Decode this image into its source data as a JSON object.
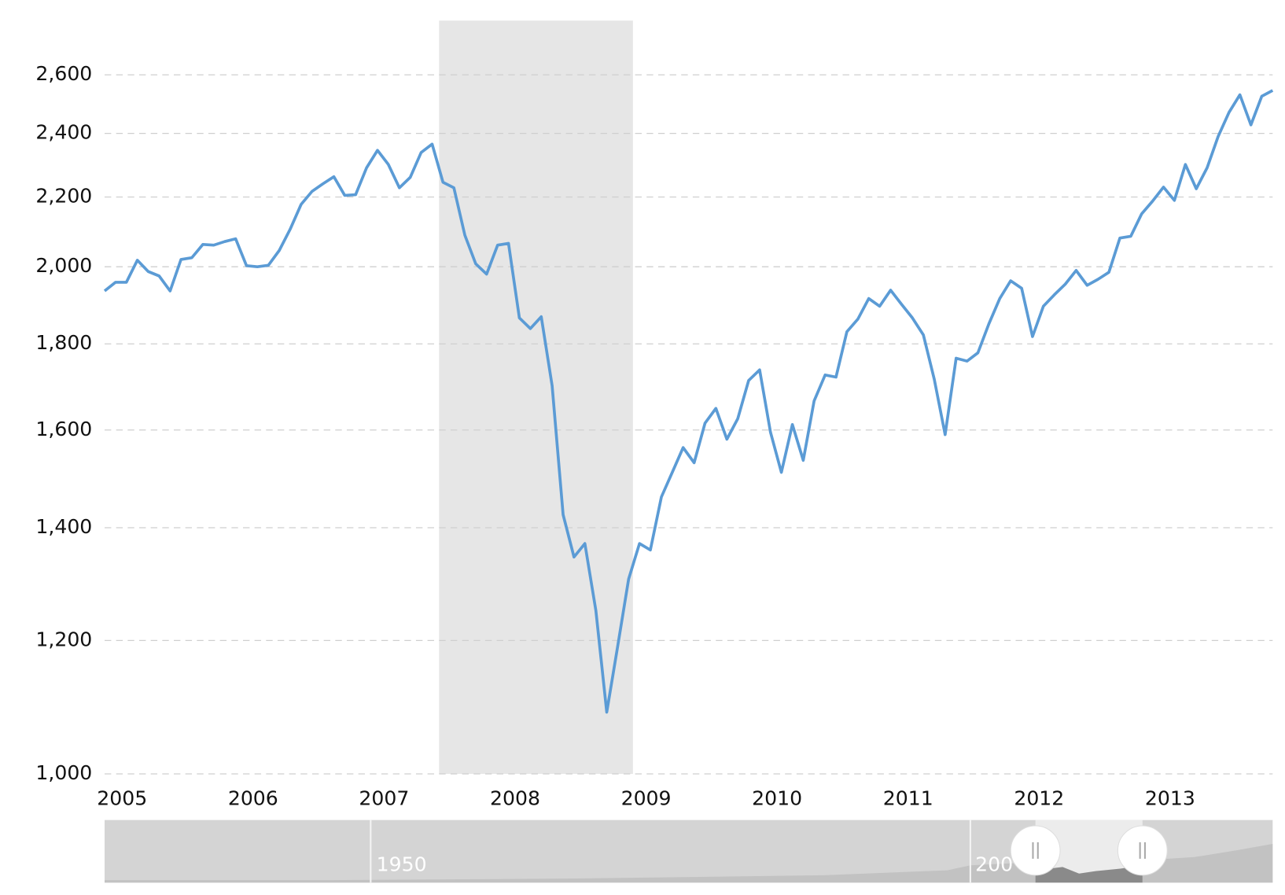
{
  "chart_data": {
    "type": "line",
    "log_scale": true,
    "grid": true,
    "xlim": [
      2004.917,
      2013.833
    ],
    "xticks": [
      2005,
      2006,
      2007,
      2008,
      2009,
      2010,
      2011,
      2012,
      2013
    ],
    "ylim": [
      1000,
      2800
    ],
    "yticks": [
      {
        "value": 1000,
        "label": "1,000"
      },
      {
        "value": 1200,
        "label": "1,200"
      },
      {
        "value": 1400,
        "label": "1,400"
      },
      {
        "value": 1600,
        "label": "1,600"
      },
      {
        "value": 1800,
        "label": "1,800"
      },
      {
        "value": 2000,
        "label": "2,000"
      },
      {
        "value": 2200,
        "label": "2,200"
      },
      {
        "value": 2400,
        "label": "2,400"
      },
      {
        "value": 2600,
        "label": "2,600"
      }
    ],
    "shaded_ranges": [
      [
        2007.47,
        2008.95
      ]
    ],
    "shade_color": "#e6e6e6",
    "navigator_labels": [
      "1950",
      "200"
    ],
    "x": [
      2004.917,
      2005.0,
      2005.083,
      2005.167,
      2005.25,
      2005.333,
      2005.417,
      2005.5,
      2005.583,
      2005.667,
      2005.75,
      2005.833,
      2005.917,
      2006.0,
      2006.083,
      2006.167,
      2006.25,
      2006.333,
      2006.417,
      2006.5,
      2006.583,
      2006.667,
      2006.75,
      2006.833,
      2006.917,
      2007.0,
      2007.083,
      2007.167,
      2007.25,
      2007.333,
      2007.417,
      2007.5,
      2007.583,
      2007.667,
      2007.75,
      2007.833,
      2007.917,
      2008.0,
      2008.083,
      2008.167,
      2008.25,
      2008.333,
      2008.417,
      2008.5,
      2008.583,
      2008.667,
      2008.75,
      2008.833,
      2008.917,
      2009.0,
      2009.083,
      2009.167,
      2009.25,
      2009.333,
      2009.417,
      2009.5,
      2009.583,
      2009.667,
      2009.75,
      2009.833,
      2009.917,
      2010.0,
      2010.083,
      2010.167,
      2010.25,
      2010.333,
      2010.417,
      2010.5,
      2010.583,
      2010.667,
      2010.75,
      2010.833,
      2010.917,
      2011.0,
      2011.083,
      2011.167,
      2011.25,
      2011.333,
      2011.417,
      2011.5,
      2011.583,
      2011.667,
      2011.75,
      2011.833,
      2011.917,
      2012.0,
      2012.083,
      2012.167,
      2012.25,
      2012.333,
      2012.417,
      2012.5,
      2012.583,
      2012.667,
      2012.75,
      2012.833,
      2012.917,
      2013.0,
      2013.083,
      2013.167,
      2013.25,
      2013.333,
      2013.417,
      2013.5,
      2013.583,
      2013.667,
      2013.75,
      2013.833
    ],
    "series": [
      {
        "color": "#5b9bd5",
        "values": [
          1935,
          1958,
          1958,
          2018,
          1987,
          1975,
          1935,
          2020,
          2025,
          2062,
          2060,
          2070,
          2078,
          2003,
          2000,
          2004,
          2045,
          2105,
          2178,
          2217,
          2240,
          2262,
          2205,
          2207,
          2290,
          2345,
          2300,
          2228,
          2260,
          2338,
          2365,
          2245,
          2228,
          2088,
          2008,
          1980,
          2060,
          2065,
          1865,
          1838,
          1868,
          1700,
          1425,
          1345,
          1370,
          1250,
          1088,
          1190,
          1305,
          1370,
          1358,
          1460,
          1510,
          1562,
          1530,
          1615,
          1648,
          1580,
          1625,
          1712,
          1737,
          1595,
          1510,
          1612,
          1535,
          1665,
          1725,
          1720,
          1830,
          1862,
          1915,
          1895,
          1937,
          1900,
          1865,
          1822,
          1715,
          1590,
          1765,
          1758,
          1778,
          1850,
          1915,
          1962,
          1942,
          1818,
          1895,
          1925,
          1953,
          1990,
          1950,
          1966,
          1985,
          2080,
          2085,
          2150,
          2188,
          2230,
          2190,
          2300,
          2225,
          2290,
          2390,
          2470,
          2530,
          2428,
          2525,
          2545
        ]
      }
    ]
  }
}
